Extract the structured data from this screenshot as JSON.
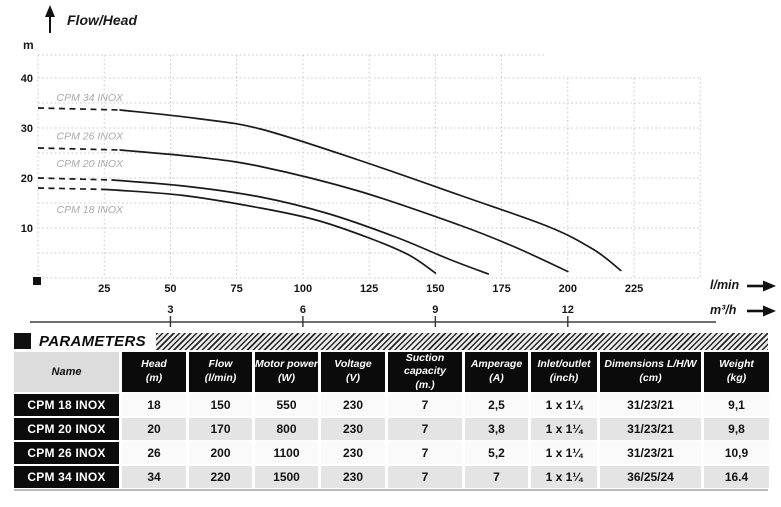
{
  "chart": {
    "title": "Flow/Head",
    "y_unit": "m",
    "x_unit_primary": "l/min",
    "x_unit_secondary": "m³/h"
  },
  "chart_data": {
    "type": "line",
    "title": "Flow/Head",
    "ylabel": "m",
    "xlabel_primary": "l/min",
    "xlabel_secondary": "m³/h",
    "xlim_lmin": [
      0,
      250
    ],
    "ylim_m": [
      0,
      44.5
    ],
    "x_ticks_lmin": [
      25,
      50,
      75,
      100,
      125,
      150,
      175,
      200,
      225
    ],
    "x_ticks_m3h": [
      {
        "label": "3",
        "lmin": 50
      },
      {
        "label": "6",
        "lmin": 100
      },
      {
        "label": "9",
        "lmin": 150
      },
      {
        "label": "12",
        "lmin": 200
      }
    ],
    "y_ticks_m": [
      10,
      20,
      30,
      40
    ],
    "grid": {
      "style": "dotted",
      "step_m": 5,
      "step_lmin": 25,
      "legend_position": "inline-left"
    },
    "series": [
      {
        "name": "CPM 34 INOX",
        "max_head_m": 34,
        "max_flow_lmin": 220,
        "dashed": [
          [
            0,
            34
          ],
          [
            31,
            33.6
          ]
        ],
        "points": [
          [
            31,
            33.6
          ],
          [
            60,
            31.9
          ],
          [
            84,
            29.8
          ],
          [
            121,
            23.6
          ],
          [
            159,
            16.6
          ],
          [
            193,
            10.2
          ],
          [
            210,
            5.6
          ],
          [
            220,
            1.5
          ]
        ],
        "label_pos": {
          "lmin": 7,
          "m": 35.4
        }
      },
      {
        "name": "CPM 26 INOX",
        "max_head_m": 26,
        "max_flow_lmin": 200,
        "dashed": [
          [
            0,
            26
          ],
          [
            31,
            25.6
          ]
        ],
        "points": [
          [
            31,
            25.6
          ],
          [
            60,
            24.2
          ],
          [
            84,
            22.3
          ],
          [
            121,
            17.4
          ],
          [
            159,
            10.6
          ],
          [
            180,
            6.2
          ],
          [
            200,
            1.3
          ]
        ],
        "label_pos": {
          "lmin": 7,
          "m": 27.7
        }
      },
      {
        "name": "CPM 20 INOX",
        "max_head_m": 20,
        "max_flow_lmin": 170,
        "dashed": [
          [
            0,
            20
          ],
          [
            28,
            19.6
          ]
        ],
        "points": [
          [
            28,
            19.6
          ],
          [
            55,
            18.4
          ],
          [
            84,
            16.2
          ],
          [
            110,
            12.8
          ],
          [
            135,
            8.2
          ],
          [
            155,
            3.8
          ],
          [
            170,
            0.8
          ]
        ],
        "label_pos": {
          "lmin": 7,
          "m": 22.2
        }
      },
      {
        "name": "CPM 18 INOX",
        "max_head_m": 18,
        "max_flow_lmin": 150,
        "dashed": [
          [
            0,
            18
          ],
          [
            26,
            17.7
          ]
        ],
        "points": [
          [
            26,
            17.7
          ],
          [
            55,
            16.5
          ],
          [
            84,
            14.0
          ],
          [
            105,
            11.6
          ],
          [
            125,
            8.0
          ],
          [
            140,
            4.6
          ],
          [
            150,
            1.0
          ]
        ],
        "label_pos": {
          "lmin": 7,
          "m": 13.0
        }
      }
    ]
  },
  "parameters": {
    "section_title": "PARAMETERS",
    "columns": [
      {
        "label": "Name",
        "unit": ""
      },
      {
        "label": "Head",
        "unit": "(m)"
      },
      {
        "label": "Flow",
        "unit": "(l/min)"
      },
      {
        "label": "Motor power",
        "unit": "(W)"
      },
      {
        "label": "Voltage",
        "unit": "(V)"
      },
      {
        "label": "Suction capacity",
        "unit": "(m.)"
      },
      {
        "label": "Amperage",
        "unit": "(A)"
      },
      {
        "label": "Inlet/outlet",
        "unit": "(inch)"
      },
      {
        "label": "Dimensions L/H/W",
        "unit": "(cm)"
      },
      {
        "label": "Weight",
        "unit": "(kg)"
      }
    ],
    "rows": [
      {
        "name": "CPM 18 INOX",
        "values": [
          "18",
          "150",
          "550",
          "230",
          "7",
          "2,5",
          "1 x 1¼",
          "31/23/21",
          "9,1"
        ]
      },
      {
        "name": "CPM 20 INOX",
        "values": [
          "20",
          "170",
          "800",
          "230",
          "7",
          "3,8",
          "1 x 1¼",
          "31/23/21",
          "9,8"
        ]
      },
      {
        "name": "CPM 26 INOX",
        "values": [
          "26",
          "200",
          "1100",
          "230",
          "7",
          "5,2",
          "1 x 1¼",
          "31/23/21",
          "10,9"
        ]
      },
      {
        "name": "CPM 34 INOX",
        "values": [
          "34",
          "220",
          "1500",
          "230",
          "7",
          "7",
          "1 x 1¼",
          "36/25/24",
          "16.4"
        ]
      }
    ]
  },
  "colors": {
    "curve": "#1a1a1a",
    "grid": "#c8c8c8",
    "curve_label": "#a9a9a9",
    "tick_text": "#141414",
    "secondary_axis": "#6e6e6e",
    "table_header_bg": "#0b0b0b",
    "name_header_bg": "#dcdcdc",
    "row_light": "#fafafa",
    "row_dark": "#e4e4e4"
  }
}
